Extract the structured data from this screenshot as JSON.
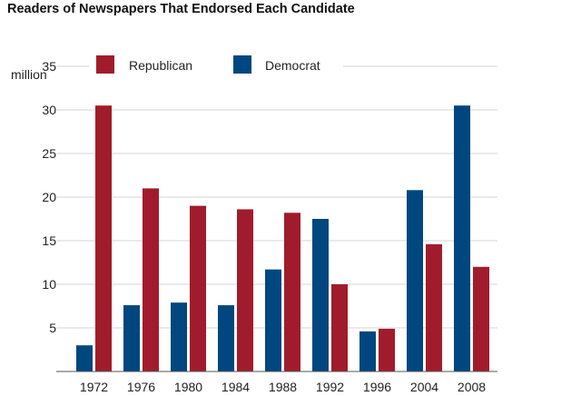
{
  "chart_data": {
    "type": "bar",
    "title": "Readers of Newspapers That Endorsed Each Candidate",
    "unit_label": "million",
    "categories": [
      "1972",
      "1976",
      "1980",
      "1984",
      "1988",
      "1992",
      "1996",
      "2004",
      "2008"
    ],
    "series": [
      {
        "name": "Democrat",
        "color": "#00467f",
        "values": [
          3.0,
          7.6,
          7.9,
          7.6,
          11.7,
          17.5,
          4.6,
          20.8,
          30.5
        ]
      },
      {
        "name": "Republican",
        "color": "#a01c2c",
        "values": [
          30.5,
          21.0,
          19.0,
          18.6,
          18.2,
          10.0,
          4.9,
          14.6,
          12.0
        ]
      }
    ],
    "y_ticks": [
      "5",
      "10",
      "15",
      "20",
      "25",
      "30",
      "35"
    ],
    "ylim": [
      0,
      35
    ],
    "grid": true,
    "legend_position": "top"
  }
}
